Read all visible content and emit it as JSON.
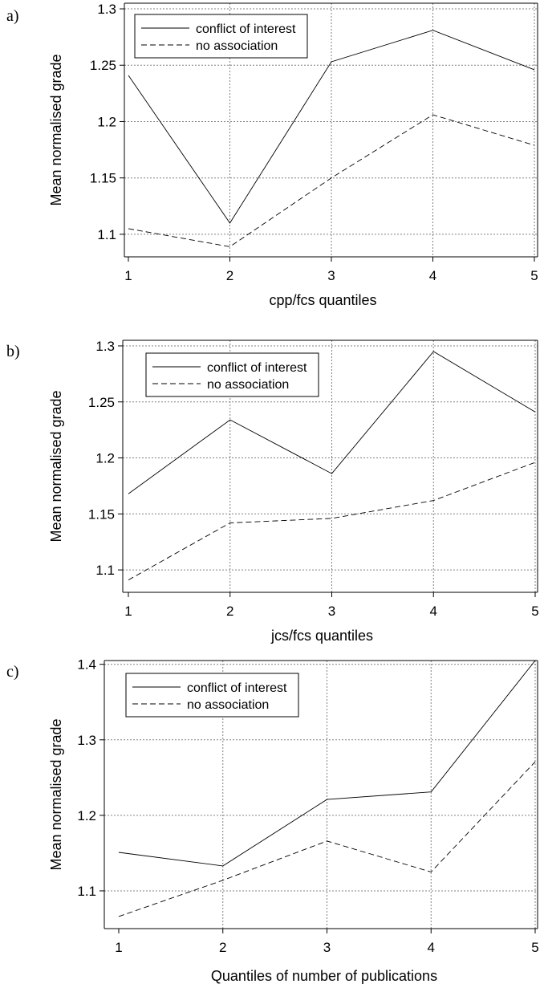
{
  "chart_data": [
    {
      "type": "line",
      "panel_label": "a)",
      "xlabel": "cpp/fcs quantiles",
      "ylabel": "Mean normalised grade",
      "x": [
        1,
        2,
        3,
        4,
        5
      ],
      "xlim": [
        1,
        5
      ],
      "ylim": [
        1.08,
        1.305
      ],
      "xticks": [
        "1",
        "2",
        "3",
        "4",
        "5"
      ],
      "yticks": [
        1.1,
        1.15,
        1.2,
        1.25,
        1.3
      ],
      "ytick_labels": [
        "1.1",
        "1.15",
        "1.2",
        "1.25",
        "1.3"
      ],
      "grid": true,
      "legend_position": "top-left",
      "series": [
        {
          "name": "conflict of interest",
          "values": [
            1.241,
            1.11,
            1.253,
            1.281,
            1.246
          ],
          "style": "solid"
        },
        {
          "name": "no association",
          "values": [
            1.105,
            1.089,
            1.15,
            1.206,
            1.179
          ],
          "style": "dashed"
        }
      ]
    },
    {
      "type": "line",
      "panel_label": "b)",
      "xlabel": "jcs/fcs quantiles",
      "ylabel": "Mean normalised grade",
      "x": [
        1,
        2,
        3,
        4,
        5
      ],
      "xlim": [
        1,
        5
      ],
      "ylim": [
        1.08,
        1.305
      ],
      "xticks": [
        "1",
        "2",
        "3",
        "4",
        "5"
      ],
      "yticks": [
        1.1,
        1.15,
        1.2,
        1.25,
        1.3
      ],
      "ytick_labels": [
        "1.1",
        "1.15",
        "1.2",
        "1.25",
        "1.3"
      ],
      "grid": true,
      "legend_position": "top-left",
      "series": [
        {
          "name": "conflict of interest",
          "values": [
            1.168,
            1.234,
            1.186,
            1.295,
            1.241
          ],
          "style": "solid"
        },
        {
          "name": "no association",
          "values": [
            1.091,
            1.142,
            1.146,
            1.162,
            1.196
          ],
          "style": "dashed"
        }
      ]
    },
    {
      "type": "line",
      "panel_label": "c)",
      "xlabel": "Quantiles of number of publications",
      "ylabel": "Mean normalised grade",
      "x": [
        1,
        2,
        3,
        4,
        5
      ],
      "xlim": [
        1,
        5
      ],
      "ylim": [
        1.05,
        1.405
      ],
      "xticks": [
        "1",
        "2",
        "3",
        "4",
        "5"
      ],
      "yticks": [
        1.1,
        1.2,
        1.3,
        1.4
      ],
      "ytick_labels": [
        "1.1",
        "1.2",
        "1.3",
        "1.4"
      ],
      "grid": true,
      "legend_position": "top-left",
      "series": [
        {
          "name": "conflict of interest",
          "values": [
            1.151,
            1.133,
            1.221,
            1.231,
            1.405
          ],
          "style": "solid"
        },
        {
          "name": "no association",
          "values": [
            1.066,
            1.114,
            1.166,
            1.125,
            1.271
          ],
          "style": "dashed"
        }
      ]
    }
  ],
  "colors": {
    "line": "#000000",
    "grid": "#808080",
    "axis": "#000000"
  }
}
